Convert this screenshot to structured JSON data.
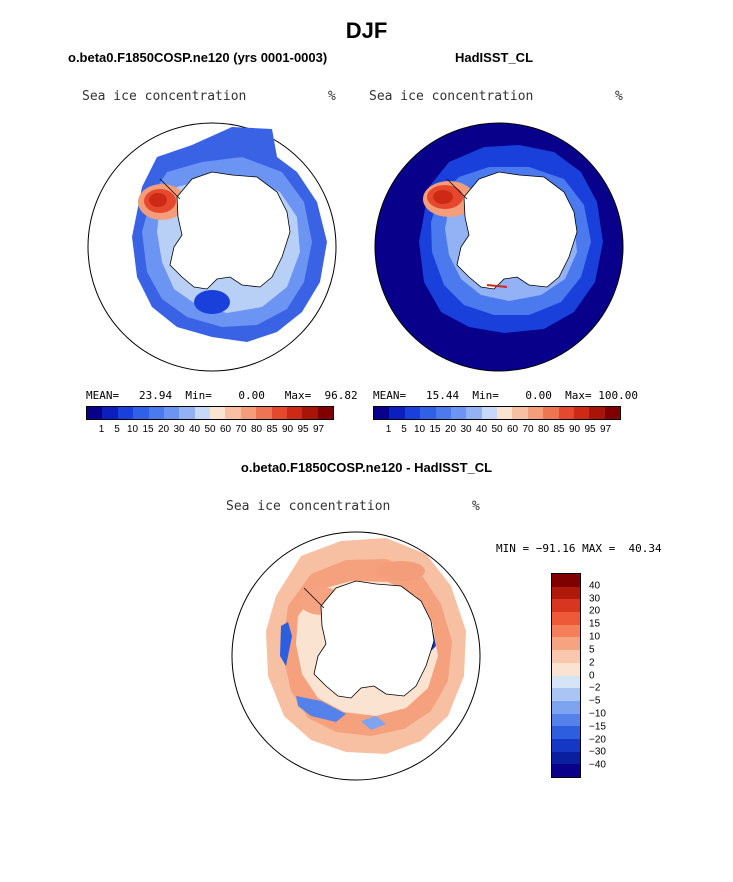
{
  "page": {
    "title": "DJF"
  },
  "panels": {
    "model": {
      "title": "o.beta0.F1850COSP.ne120 (yrs 0001-0003)",
      "variable": "Sea ice concentration",
      "units": "%",
      "mean_label": "MEAN=",
      "mean": "23.94",
      "min_label": "Min=",
      "min": "0.00",
      "max_label": "Max=",
      "max": "96.82"
    },
    "obs": {
      "title": "HadISST_CL",
      "variable": "Sea ice concentration",
      "units": "%",
      "mean_label": "MEAN=",
      "mean": "15.44",
      "min_label": "Min=",
      "min": "0.00",
      "max_label": "Max=",
      "max": "100.00"
    },
    "diff": {
      "title": "o.beta0.F1850COSP.ne120 - HadISST_CL",
      "variable": "Sea ice concentration",
      "units": "%",
      "minmax_text": "MIN = −91.16 MAX =  40.34"
    }
  },
  "chart_data": [
    {
      "type": "heatmap",
      "title": "o.beta0.F1850COSP.ne120 (yrs 0001-0003)",
      "projection": "south polar stereographic",
      "variable": "Sea ice concentration",
      "units": "%",
      "stats": {
        "mean": 23.94,
        "min": 0.0,
        "max": 96.82
      },
      "colorbar": {
        "levels": [
          "1",
          "5",
          "10",
          "15",
          "20",
          "30",
          "40",
          "50",
          "60",
          "70",
          "80",
          "85",
          "90",
          "95",
          "97"
        ],
        "colors": [
          "#08008a",
          "#0a1fbd",
          "#1a40dc",
          "#3060e6",
          "#4b7aee",
          "#6c94f2",
          "#92b2f5",
          "#c6daf8",
          "#fbe3d2",
          "#f8c0a3",
          "#f49d7a",
          "#ee7554",
          "#e5482d",
          "#cd2a16",
          "#a81408",
          "#800000"
        ]
      }
    },
    {
      "type": "heatmap",
      "title": "HadISST_CL",
      "projection": "south polar stereographic",
      "variable": "Sea ice concentration",
      "units": "%",
      "stats": {
        "mean": 15.44,
        "min": 0.0,
        "max": 100.0
      },
      "colorbar": {
        "levels": [
          "1",
          "5",
          "10",
          "15",
          "20",
          "30",
          "40",
          "50",
          "60",
          "70",
          "80",
          "85",
          "90",
          "95",
          "97"
        ],
        "colors": [
          "#08008a",
          "#0a1fbd",
          "#1a40dc",
          "#3060e6",
          "#4b7aee",
          "#6c94f2",
          "#92b2f5",
          "#c6daf8",
          "#fbe3d2",
          "#f8c0a3",
          "#f49d7a",
          "#ee7554",
          "#e5482d",
          "#cd2a16",
          "#a81408",
          "#800000"
        ]
      }
    },
    {
      "type": "heatmap",
      "title": "o.beta0.F1850COSP.ne120 - HadISST_CL",
      "projection": "south polar stereographic",
      "variable": "Sea ice concentration",
      "units": "%",
      "stats": {
        "min": -91.16,
        "max": 40.34
      },
      "colorbar": {
        "levels": [
          "40",
          "30",
          "20",
          "15",
          "10",
          "5",
          "2",
          "0",
          "−2",
          "−5",
          "−10",
          "−15",
          "−20",
          "−30",
          "−40"
        ],
        "colors": [
          "#800000",
          "#b0180a",
          "#d8361e",
          "#ee5a38",
          "#f47f5a",
          "#f6a382",
          "#f9c7ad",
          "#fbe3d2",
          "#d6e4f8",
          "#aac4f4",
          "#7ea3ef",
          "#5582ea",
          "#2d5ee0",
          "#1438c4",
          "#0a1fa0",
          "#08008a"
        ]
      }
    }
  ]
}
